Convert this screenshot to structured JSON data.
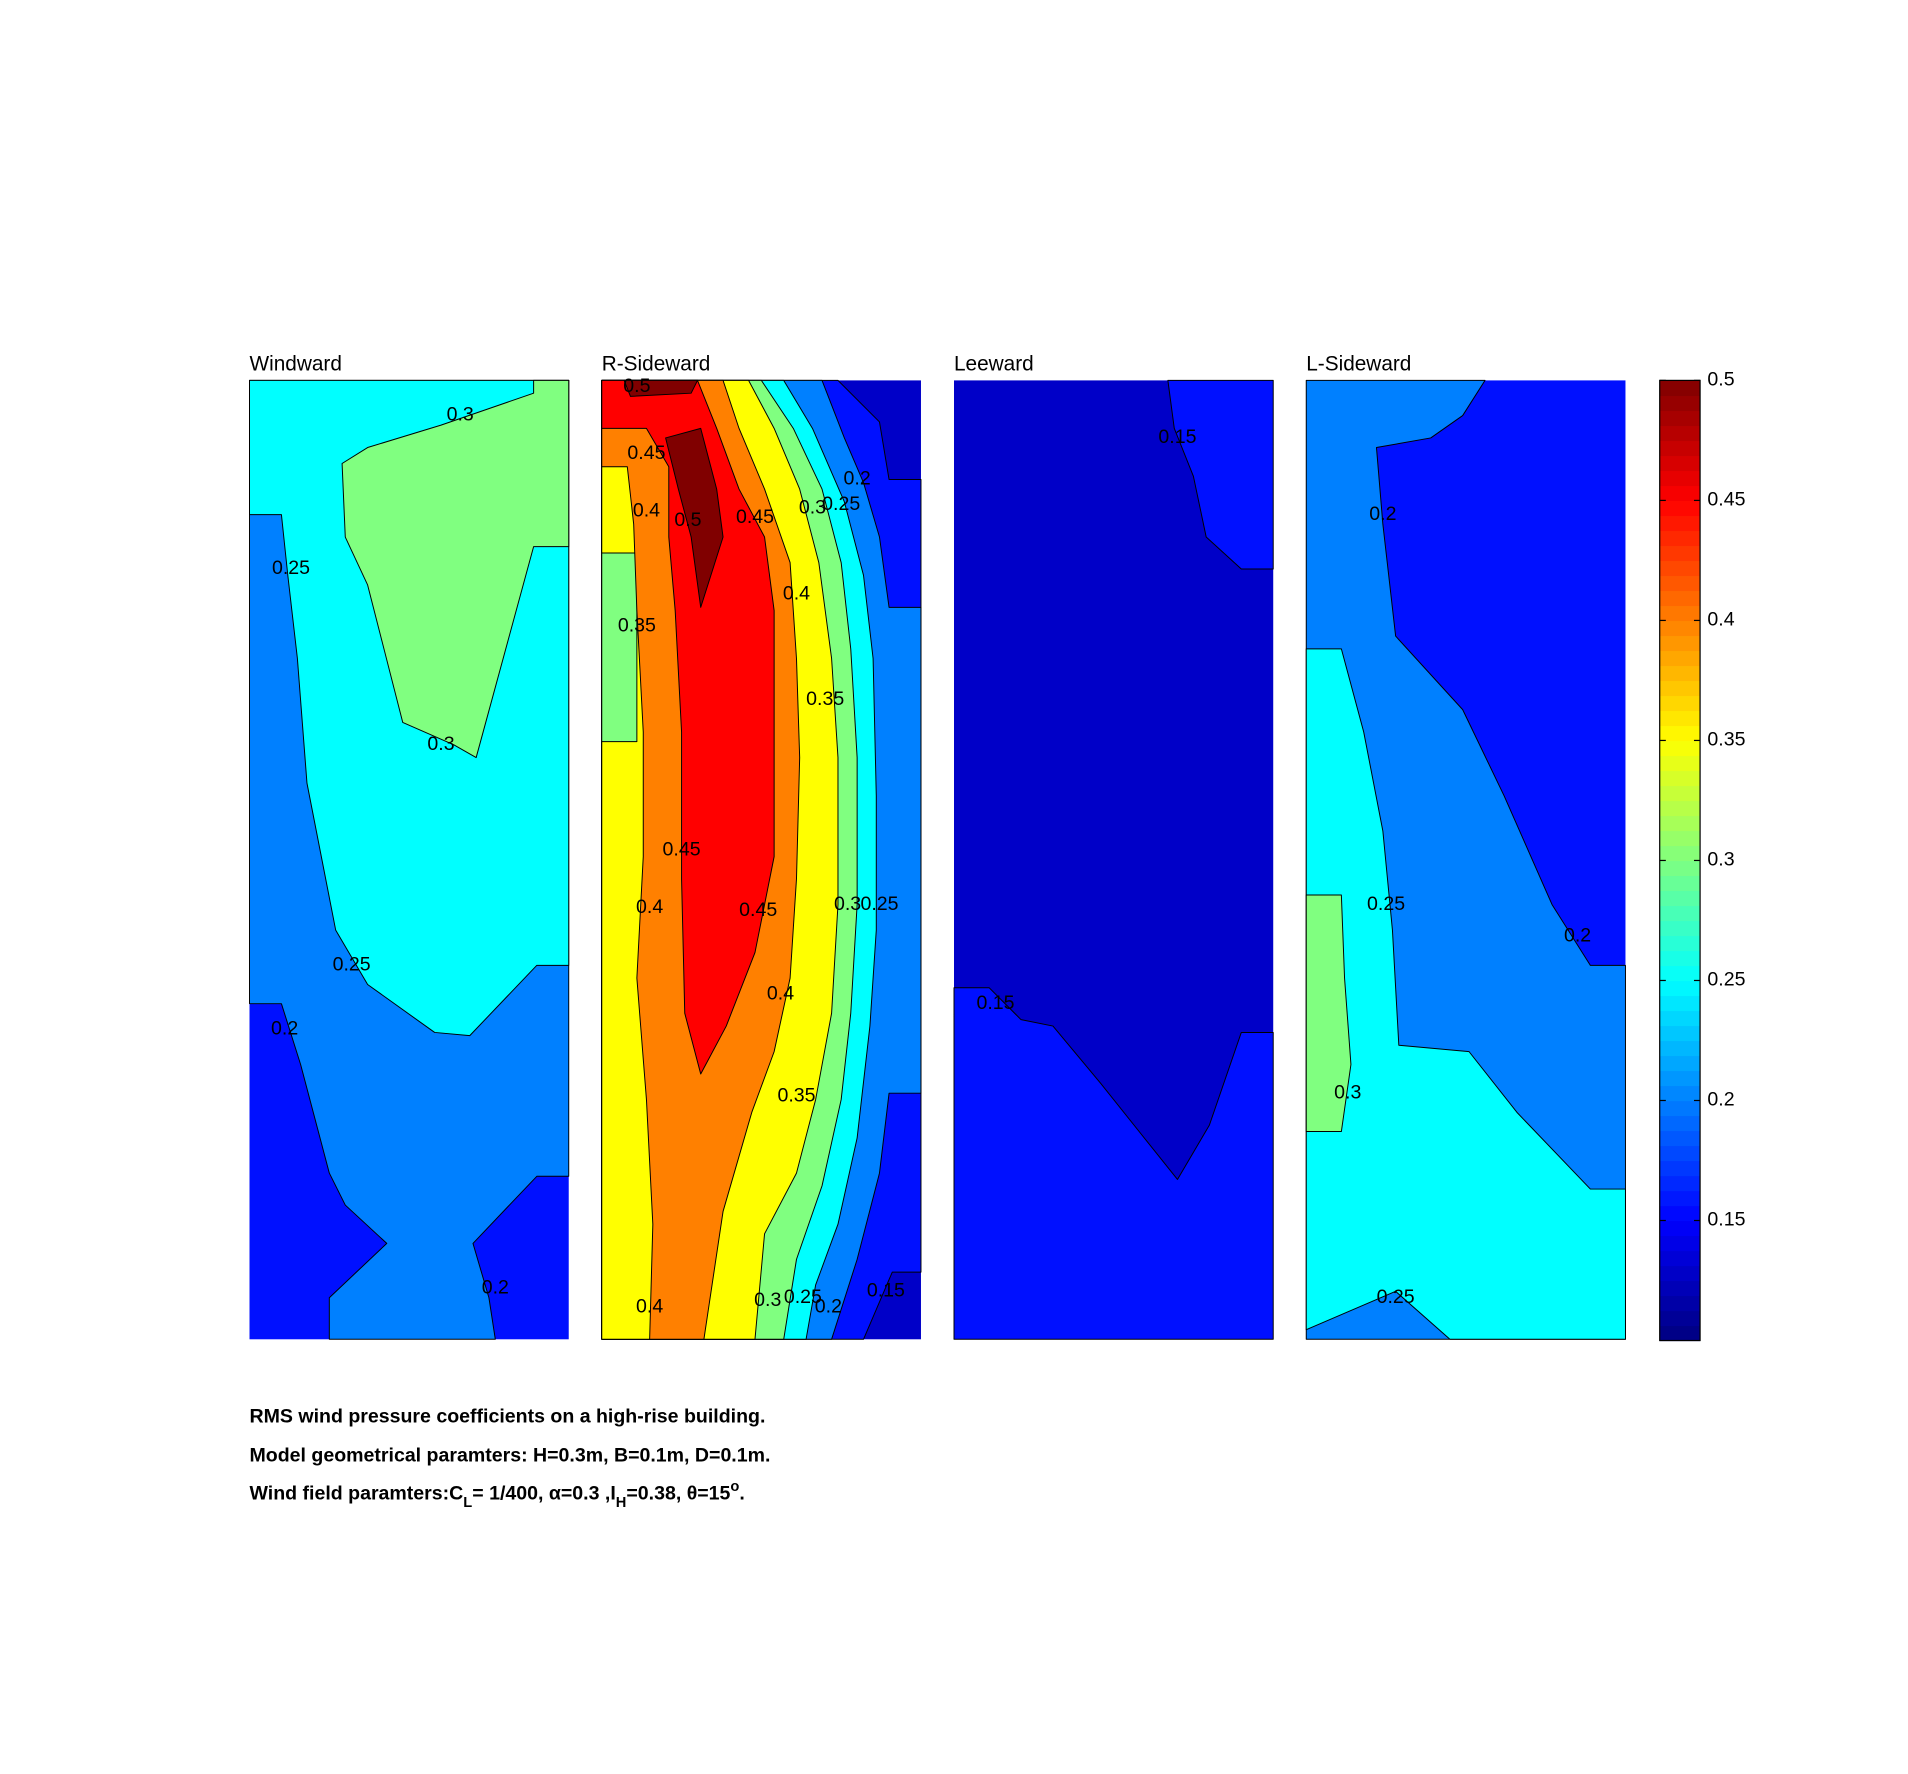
{
  "chart_data": [
    {
      "type": "contour",
      "title": "Windward",
      "xlim": [
        0,
        10
      ],
      "ylim": [
        0,
        30
      ],
      "base_level": 0.15,
      "regions": [
        {
          "level": 0.2,
          "x": [
            0,
            10,
            10,
            9.0,
            7.0,
            7.5,
            7.7,
            2.5,
            2.5,
            4.3,
            3.0,
            2.5,
            1.6,
            1.0,
            0
          ],
          "y": [
            30,
            30,
            5.1,
            5.1,
            3.0,
            1.3,
            0,
            0,
            1.3,
            3.0,
            4.2,
            5.2,
            8.6,
            10.5,
            10.5
          ]
        },
        {
          "level": 0.25,
          "x": [
            0,
            10,
            10,
            9.0,
            6.9,
            5.8,
            3.7,
            2.7,
            1.8,
            1.5,
            1.2,
            1.0,
            0
          ],
          "y": [
            30,
            30,
            11.7,
            11.7,
            9.5,
            9.6,
            11.1,
            12.8,
            17.4,
            21.3,
            23.9,
            25.8,
            25.8
          ]
        },
        {
          "level": 0.3,
          "x": [
            8.9,
            10,
            10,
            8.9,
            7.1,
            6.4,
            4.8,
            3.7,
            3.0,
            2.9,
            3.7,
            6.0,
            8.9
          ],
          "y": [
            30,
            30,
            24.8,
            24.8,
            18.2,
            18.6,
            19.3,
            23.6,
            25.1,
            27.4,
            27.9,
            28.6,
            29.6
          ]
        }
      ],
      "labels": [
        {
          "value": 0.3,
          "x": 6.6,
          "y": 28.9
        },
        {
          "value": 0.25,
          "x": 1.3,
          "y": 24.1
        },
        {
          "value": 0.3,
          "x": 6.0,
          "y": 18.6
        },
        {
          "value": 0.25,
          "x": 3.2,
          "y": 11.7
        },
        {
          "value": 0.2,
          "x": 1.1,
          "y": 9.7
        },
        {
          "value": 0.2,
          "x": 7.7,
          "y": 1.6
        }
      ]
    },
    {
      "type": "contour",
      "title": "R-Sideward",
      "xlim": [
        0,
        10
      ],
      "ylim": [
        0,
        30
      ],
      "base_level": 0.1,
      "regions": [
        {
          "level": 0.15,
          "x": [
            0,
            7.4,
            8.7,
            9.0,
            10,
            10,
            9.1,
            8.2,
            0
          ],
          "y": [
            30,
            30,
            28.7,
            26.9,
            26.9,
            2.1,
            2.1,
            0,
            0
          ]
        },
        {
          "level": 0.2,
          "x": [
            0,
            6.9,
            7.6,
            8.2,
            8.7,
            9.0,
            10,
            10,
            9.0,
            8.7,
            8.0,
            7.2,
            0
          ],
          "y": [
            30,
            30,
            28.2,
            26.8,
            25.1,
            22.9,
            22.9,
            7.7,
            7.7,
            5.2,
            2.5,
            0,
            0
          ]
        },
        {
          "level": 0.25,
          "x": [
            0,
            5.7,
            6.6,
            7.6,
            8.2,
            8.5,
            8.6,
            8.6,
            8.4,
            8.0,
            7.4,
            6.7,
            6.4,
            0
          ],
          "y": [
            30,
            30,
            28.5,
            26.2,
            23.9,
            21.3,
            17.0,
            12.8,
            9.8,
            6.3,
            3.6,
            1.7,
            0,
            0
          ]
        },
        {
          "level": 0.3,
          "x": [
            0,
            5.0,
            6.0,
            6.9,
            7.5,
            7.8,
            8.0,
            8.0,
            7.8,
            7.5,
            6.9,
            6.1,
            5.7,
            0
          ],
          "y": [
            30,
            30,
            28.5,
            26.6,
            24.3,
            21.6,
            18.2,
            13.6,
            10.2,
            7.5,
            4.8,
            2.5,
            0,
            0
          ]
        },
        {
          "level": 0.35,
          "x": [
            0,
            4.6,
            5.4,
            6.2,
            6.8,
            7.2,
            7.4,
            7.4,
            7.2,
            6.7,
            6.1,
            5.1,
            4.8,
            0,
            0,
            1.1,
            1.1,
            0
          ],
          "y": [
            30,
            30,
            28.5,
            26.6,
            24.3,
            21.3,
            18.2,
            13.6,
            10.2,
            7.5,
            5.2,
            3.3,
            0,
            0,
            18.7,
            18.7,
            24.6,
            24.6
          ]
        },
        {
          "level": 0.4,
          "x": [
            0,
            3.8,
            4.3,
            5.1,
            5.9,
            6.1,
            6.2,
            6.1,
            5.9,
            5.4,
            4.7,
            3.8,
            3.2,
            1.5,
            1.6,
            1.4,
            1.1,
            1.3,
            1.3,
            1.1,
            1.0,
            0.8,
            0
          ],
          "y": [
            30,
            30,
            28.5,
            26.6,
            24.3,
            21.3,
            18.2,
            14.4,
            11.3,
            9.0,
            7.1,
            4.0,
            0,
            0,
            3.6,
            7.5,
            11.3,
            15.1,
            19.0,
            22.8,
            25.5,
            27.3,
            27.3
          ]
        },
        {
          "level": 0.45,
          "x": [
            0,
            3.0,
            3.6,
            4.3,
            5.1,
            5.4,
            5.4,
            5.4,
            4.8,
            3.9,
            3.1,
            2.6,
            2.5,
            2.5,
            2.3,
            2.1,
            2.1,
            1.4,
            0
          ],
          "y": [
            30,
            30,
            28.5,
            26.6,
            25.1,
            22.8,
            19.0,
            15.1,
            12.1,
            9.8,
            8.3,
            10.2,
            14.4,
            19.0,
            22.8,
            25.1,
            27.3,
            28.5,
            28.5
          ]
        },
        {
          "level": 0.5,
          "x": [
            0.7,
            3.0,
            2.8,
            0.9
          ],
          "y": [
            30,
            30,
            29.6,
            29.5
          ]
        },
        {
          "level": 0.5,
          "x": [
            2.0,
            3.1,
            3.6,
            3.8,
            3.1,
            2.8,
            2.4
          ],
          "y": [
            28.2,
            28.5,
            26.6,
            25.1,
            22.9,
            25.1,
            26.6
          ]
        }
      ],
      "labels": [
        {
          "value": 0.5,
          "x": 1.1,
          "y": 29.8
        },
        {
          "value": 0.45,
          "x": 1.4,
          "y": 27.7
        },
        {
          "value": 0.4,
          "x": 1.4,
          "y": 25.9
        },
        {
          "value": 0.5,
          "x": 2.7,
          "y": 25.6
        },
        {
          "value": 0.45,
          "x": 4.8,
          "y": 25.7
        },
        {
          "value": 0.3,
          "x": 6.6,
          "y": 26.0
        },
        {
          "value": 0.25,
          "x": 7.5,
          "y": 26.1
        },
        {
          "value": 0.2,
          "x": 8.0,
          "y": 26.9
        },
        {
          "value": 0.4,
          "x": 6.1,
          "y": 23.3
        },
        {
          "value": 0.35,
          "x": 1.1,
          "y": 22.3
        },
        {
          "value": 0.35,
          "x": 7.0,
          "y": 20.0
        },
        {
          "value": 0.45,
          "x": 2.5,
          "y": 15.3
        },
        {
          "value": 0.4,
          "x": 1.5,
          "y": 13.5
        },
        {
          "value": 0.45,
          "x": 4.9,
          "y": 13.4
        },
        {
          "value": 0.3,
          "x": 7.7,
          "y": 13.6
        },
        {
          "value": 0.25,
          "x": 8.7,
          "y": 13.6
        },
        {
          "value": 0.4,
          "x": 5.6,
          "y": 10.8
        },
        {
          "value": 0.35,
          "x": 6.1,
          "y": 7.6
        },
        {
          "value": 0.4,
          "x": 1.5,
          "y": 1.0
        },
        {
          "value": 0.3,
          "x": 5.2,
          "y": 1.2
        },
        {
          "value": 0.25,
          "x": 6.3,
          "y": 1.3
        },
        {
          "value": 0.2,
          "x": 7.1,
          "y": 1.0
        },
        {
          "value": 0.15,
          "x": 8.9,
          "y": 1.5
        }
      ]
    },
    {
      "type": "contour",
      "title": "Leeward",
      "xlim": [
        0,
        10
      ],
      "ylim": [
        0,
        30
      ],
      "base_level": 0.1,
      "regions": [
        {
          "level": 0.15,
          "x": [
            6.7,
            10,
            10,
            9.0,
            7.9,
            7.5,
            6.9
          ],
          "y": [
            30,
            30,
            24.1,
            24.1,
            25.1,
            27.0,
            28.5
          ]
        },
        {
          "level": 0.15,
          "x": [
            0,
            1.1,
            2.1,
            3.1,
            4.6,
            7.0,
            8.0,
            9.0,
            10,
            10,
            0
          ],
          "y": [
            11.0,
            11.0,
            10.0,
            9.8,
            8.0,
            5.0,
            6.7,
            9.6,
            9.6,
            0,
            0
          ]
        }
      ],
      "labels": [
        {
          "value": 0.15,
          "x": 7.0,
          "y": 28.2
        },
        {
          "value": 0.15,
          "x": 1.3,
          "y": 10.5
        }
      ]
    },
    {
      "type": "contour",
      "title": "L-Sideward",
      "xlim": [
        0,
        10
      ],
      "ylim": [
        0,
        30
      ],
      "base_level": 0.15,
      "regions": [
        {
          "level": 0.2,
          "x": [
            0,
            5.6,
            4.9,
            3.9,
            2.2,
            2.4,
            2.8,
            4.9,
            6.2,
            7.7,
            8.9,
            10,
            10,
            0
          ],
          "y": [
            30,
            30,
            28.9,
            28.2,
            27.9,
            25.5,
            22.0,
            19.7,
            17.0,
            13.6,
            11.7,
            11.7,
            0,
            0
          ]
        },
        {
          "level": 0.25,
          "x": [
            0,
            1.1,
            1.8,
            2.4,
            2.7,
            2.9,
            5.1,
            6.6,
            8.9,
            10,
            10,
            4.5,
            2.8,
            0
          ],
          "y": [
            21.6,
            21.6,
            19.0,
            15.9,
            12.8,
            9.2,
            9.0,
            7.1,
            4.7,
            4.7,
            0,
            0,
            1.5,
            0.3
          ]
        },
        {
          "level": 0.3,
          "x": [
            0,
            1.1,
            1.2,
            1.4,
            1.1,
            0
          ],
          "y": [
            13.9,
            13.9,
            11.3,
            8.6,
            6.5,
            6.5
          ]
        }
      ],
      "labels": [
        {
          "value": 0.2,
          "x": 2.4,
          "y": 25.8
        },
        {
          "value": 0.25,
          "x": 2.5,
          "y": 13.6
        },
        {
          "value": 0.2,
          "x": 8.5,
          "y": 12.6
        },
        {
          "value": 0.3,
          "x": 1.3,
          "y": 7.7
        },
        {
          "value": 0.25,
          "x": 2.8,
          "y": 1.3
        }
      ]
    },
    {
      "type": "colorbar",
      "clim": [
        0.1,
        0.5
      ],
      "ticks": [
        0.15,
        0.2,
        0.25,
        0.3,
        0.35,
        0.4,
        0.45,
        0.5
      ],
      "levels": [
        0.1,
        0.15,
        0.2,
        0.25,
        0.3,
        0.35,
        0.4,
        0.45,
        0.5
      ],
      "colors": [
        "#0000c8",
        "#0010ff",
        "#0080ff",
        "#00ffff",
        "#80ff80",
        "#ffff00",
        "#ff8000",
        "#ff0000",
        "#800000"
      ]
    }
  ],
  "caption": [
    "RMS wind pressure coefficients on a high-rise building.",
    "Model geometrical paramters: H=0.3m, B=0.1m, D=0.1m.",
    [
      "Wind field paramters:C",
      "L",
      "= 1/400, α=0.3 ,I",
      "H",
      "=0.38, θ=15",
      "o",
      "."
    ]
  ]
}
